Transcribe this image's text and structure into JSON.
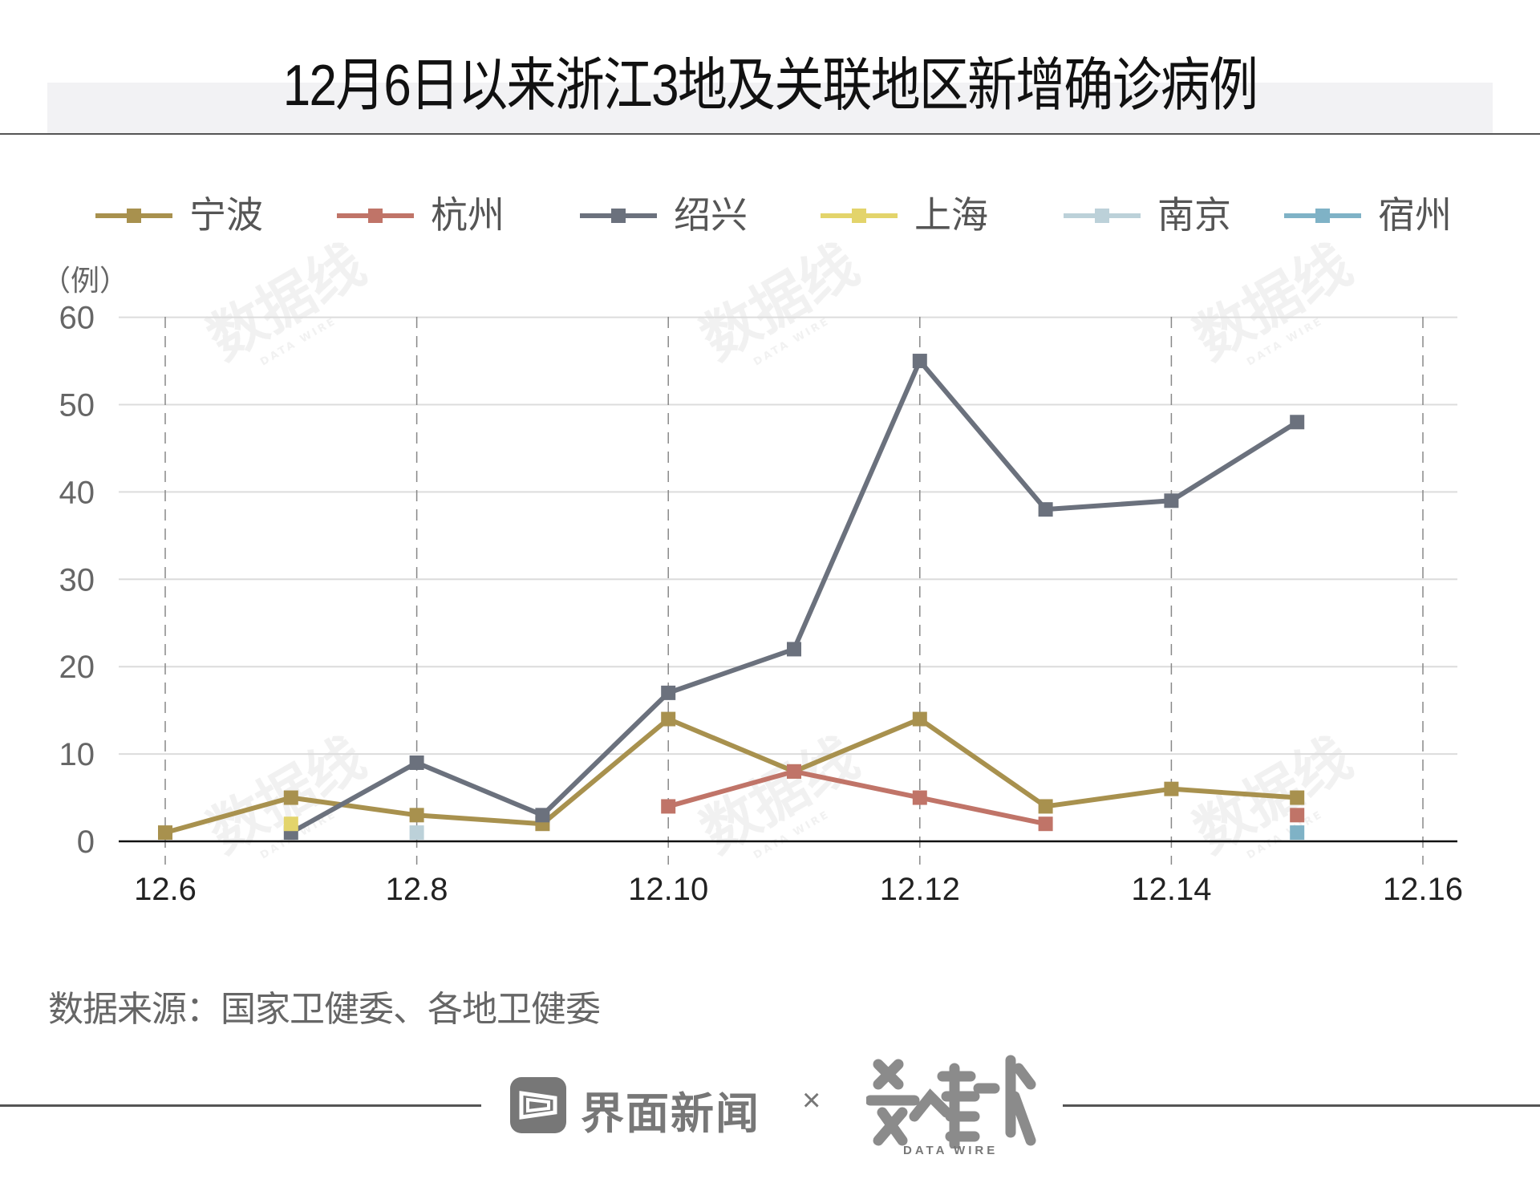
{
  "header": {
    "title": "12月6日以来浙江3地及关联地区新增确诊病例"
  },
  "legend": [
    {
      "label": "宁波",
      "color": "#A8914E"
    },
    {
      "label": "杭州",
      "color": "#C07468"
    },
    {
      "label": "绍兴",
      "color": "#6B717D"
    },
    {
      "label": "上海",
      "color": "#E3D46B"
    },
    {
      "label": "南京",
      "color": "#BCD1D9"
    },
    {
      "label": "宿州",
      "color": "#7FB2C6"
    }
  ],
  "axis": {
    "y_unit": "（例）",
    "y_ticks": [
      "0",
      "10",
      "20",
      "30",
      "40",
      "50",
      "60"
    ],
    "x_ticks": [
      "12.6",
      "12.8",
      "12.10",
      "12.12",
      "12.14",
      "12.16"
    ]
  },
  "source": "数据来源：国家卫健委、各地卫健委",
  "footer": {
    "brand": "界面新闻",
    "times": "×",
    "partner": "数据线",
    "partner_en": "DATA WIRE"
  },
  "watermark": {
    "text": "数据线",
    "sub": "DATA WIRE"
  },
  "chart_data": {
    "type": "line",
    "title": "12月6日以来浙江3地及关联地区新增确诊病例",
    "xlabel": "",
    "ylabel": "（例）",
    "ylim": [
      0,
      60
    ],
    "y_ticks": [
      0,
      10,
      20,
      30,
      40,
      50,
      60
    ],
    "x": [
      "12.6",
      "12.7",
      "12.8",
      "12.9",
      "12.10",
      "12.11",
      "12.12",
      "12.13",
      "12.14",
      "12.15"
    ],
    "x_ticks": [
      "12.6",
      "12.8",
      "12.10",
      "12.12",
      "12.14",
      "12.16"
    ],
    "grid": {
      "horizontal": true,
      "vertical": "dashed"
    },
    "legend_position": "top",
    "series": [
      {
        "name": "宁波",
        "color": "#A8914E",
        "values": [
          1,
          5,
          3,
          2,
          14,
          8,
          14,
          4,
          6,
          5
        ]
      },
      {
        "name": "杭州",
        "color": "#C07468",
        "values": [
          null,
          null,
          null,
          null,
          4,
          8,
          5,
          2,
          null,
          3
        ]
      },
      {
        "name": "绍兴",
        "color": "#6B717D",
        "values": [
          null,
          1,
          9,
          3,
          17,
          22,
          55,
          38,
          39,
          48
        ]
      },
      {
        "name": "上海",
        "color": "#E3D46B",
        "values": [
          null,
          2,
          null,
          null,
          null,
          null,
          null,
          null,
          null,
          null
        ]
      },
      {
        "name": "南京",
        "color": "#BCD1D9",
        "values": [
          null,
          null,
          1,
          null,
          null,
          null,
          null,
          null,
          null,
          null
        ]
      },
      {
        "name": "宿州",
        "color": "#7FB2C6",
        "values": [
          null,
          null,
          null,
          null,
          null,
          null,
          null,
          null,
          null,
          1
        ]
      }
    ]
  }
}
